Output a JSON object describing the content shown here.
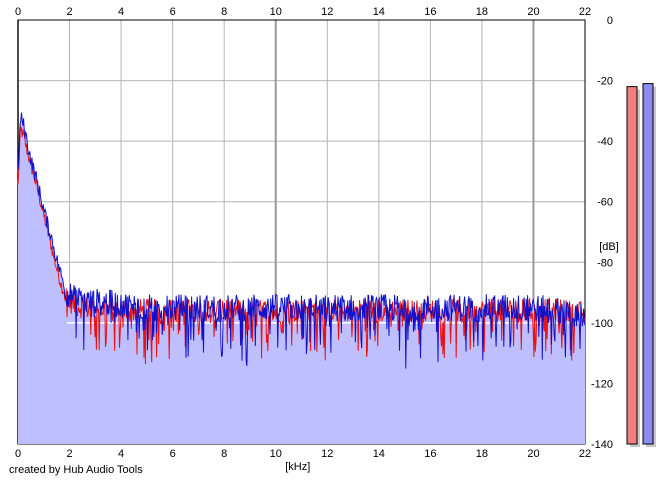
{
  "credit": "created by Hub Audio Tools",
  "chart_data": {
    "type": "area",
    "xlabel": "[kHz]",
    "ylabel": "[dB]",
    "xlim": [
      0,
      22
    ],
    "ylim": [
      -140,
      0
    ],
    "x_ticks": [
      0,
      2,
      4,
      6,
      8,
      10,
      12,
      14,
      16,
      18,
      20,
      22
    ],
    "y_ticks": [
      0,
      -20,
      -40,
      -60,
      -80,
      -100,
      -120,
      -140
    ],
    "x_tick_labels": [
      "0",
      "2",
      "4",
      "6",
      "8",
      "10",
      "12",
      "14",
      "16",
      "18",
      "20",
      "22"
    ],
    "y_tick_labels": [
      "0",
      "-20",
      "-40",
      "-60",
      "-80",
      "-100",
      "-120",
      "-140"
    ],
    "grid": true,
    "legend": "none",
    "colors": {
      "left_channel": "#ee1111",
      "right_channel": "#1111cc",
      "fill": "#bfbfff",
      "baseline": "#ffffff",
      "grid": "#b4b4b4",
      "grid_major": "#999999",
      "left_meter": "#f08080",
      "right_meter": "#8c8cf0"
    },
    "series": [
      {
        "x": [
          0,
          0.1,
          0.2,
          0.35,
          0.5,
          0.7,
          0.9,
          1.1,
          1.3,
          1.5,
          1.7,
          1.9,
          2.2,
          2.6,
          3.0,
          4.0,
          5.0,
          6.0,
          7.0,
          8.0,
          9.0,
          10.0,
          11.0,
          12.0,
          13.0,
          14.0,
          15.0,
          16.0,
          17.0,
          18.0,
          19.0,
          20.0,
          21.0,
          22.0
        ],
        "values": [
          -55,
          -36,
          -38,
          -43,
          -48,
          -54,
          -61,
          -68,
          -75,
          -82,
          -88,
          -92,
          -94,
          -95,
          -95,
          -96,
          -96,
          -96,
          -96,
          -96,
          -96,
          -96,
          -96,
          -96,
          -96,
          -96,
          -96,
          -96,
          -96,
          -96,
          -96,
          -96,
          -96,
          -97
        ]
      },
      {
        "x": [
          0,
          0.1,
          0.2,
          0.35,
          0.5,
          0.7,
          0.9,
          1.1,
          1.3,
          1.5,
          1.7,
          1.9,
          2.2,
          2.6,
          3.0,
          4.0,
          5.0,
          6.0,
          7.0,
          8.0,
          9.0,
          10.0,
          11.0,
          12.0,
          13.0,
          14.0,
          15.0,
          16.0,
          17.0,
          18.0,
          19.0,
          20.0,
          21.0,
          22.0
        ],
        "values": [
          -50,
          -32,
          -34,
          -40,
          -46,
          -52,
          -59,
          -66,
          -72,
          -79,
          -85,
          -90,
          -92,
          -93,
          -93,
          -94,
          -95,
          -95,
          -95,
          -95,
          -95,
          -95,
          -95,
          -95,
          -95,
          -95,
          -95,
          -95,
          -95,
          -95,
          -95,
          -95,
          -96,
          -98
        ]
      }
    ],
    "noise_floor": -100,
    "level_meters": [
      {
        "channel": "left",
        "value": -22
      },
      {
        "channel": "right",
        "value": -21
      }
    ]
  }
}
